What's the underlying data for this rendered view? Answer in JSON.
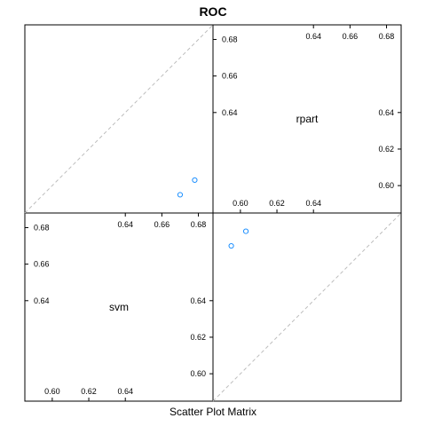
{
  "chart_data": {
    "type": "scatter",
    "title": "ROC",
    "xlabel": "Scatter Plot Matrix",
    "variables": [
      "svm",
      "rpart"
    ],
    "variable_ranges": {
      "svm": [
        0.585,
        0.688
      ],
      "rpart": [
        0.585,
        0.688
      ]
    },
    "tick_labels": {
      "low": [
        "0.60",
        "0.62",
        "0.64"
      ],
      "high": [
        "0.64",
        "0.66",
        "0.68"
      ]
    },
    "points": [
      {
        "svm": 0.678,
        "rpart": 0.603
      },
      {
        "svm": 0.67,
        "rpart": 0.595
      }
    ],
    "reference_line": "diagonal (dashed, grey)",
    "point_color": "#1e90ff",
    "grid": false
  }
}
